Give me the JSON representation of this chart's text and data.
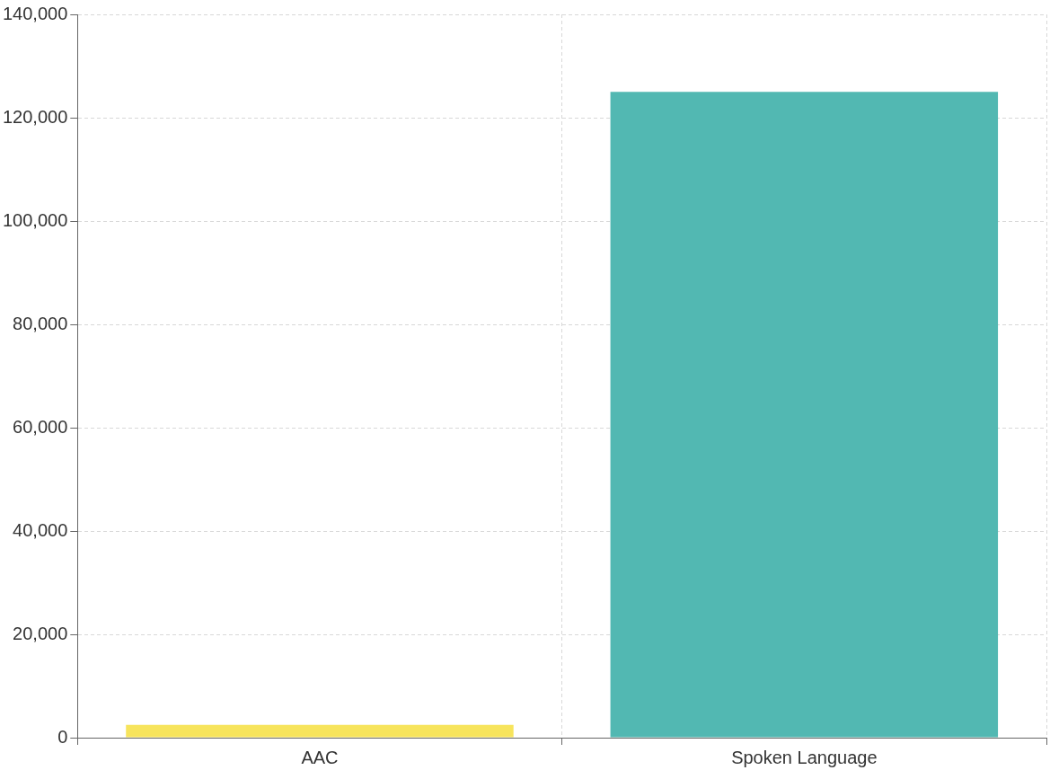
{
  "chart_data": {
    "type": "bar",
    "categories": [
      "AAC",
      "Spoken Language"
    ],
    "values": [
      2500,
      125000
    ],
    "colors": [
      "#f7e45c",
      "#52b8b2"
    ],
    "ylim": [
      0,
      140000
    ],
    "yticks": [
      {
        "value": 0,
        "label": "0"
      },
      {
        "value": 20000,
        "label": "20,000"
      },
      {
        "value": 40000,
        "label": "40,000"
      },
      {
        "value": 60000,
        "label": "60,000"
      },
      {
        "value": 80000,
        "label": "80,000"
      },
      {
        "value": 100000,
        "label": "100,000"
      },
      {
        "value": 120000,
        "label": "120,000"
      },
      {
        "value": 140000,
        "label": "140,000"
      }
    ],
    "grid": true,
    "legend": false
  }
}
